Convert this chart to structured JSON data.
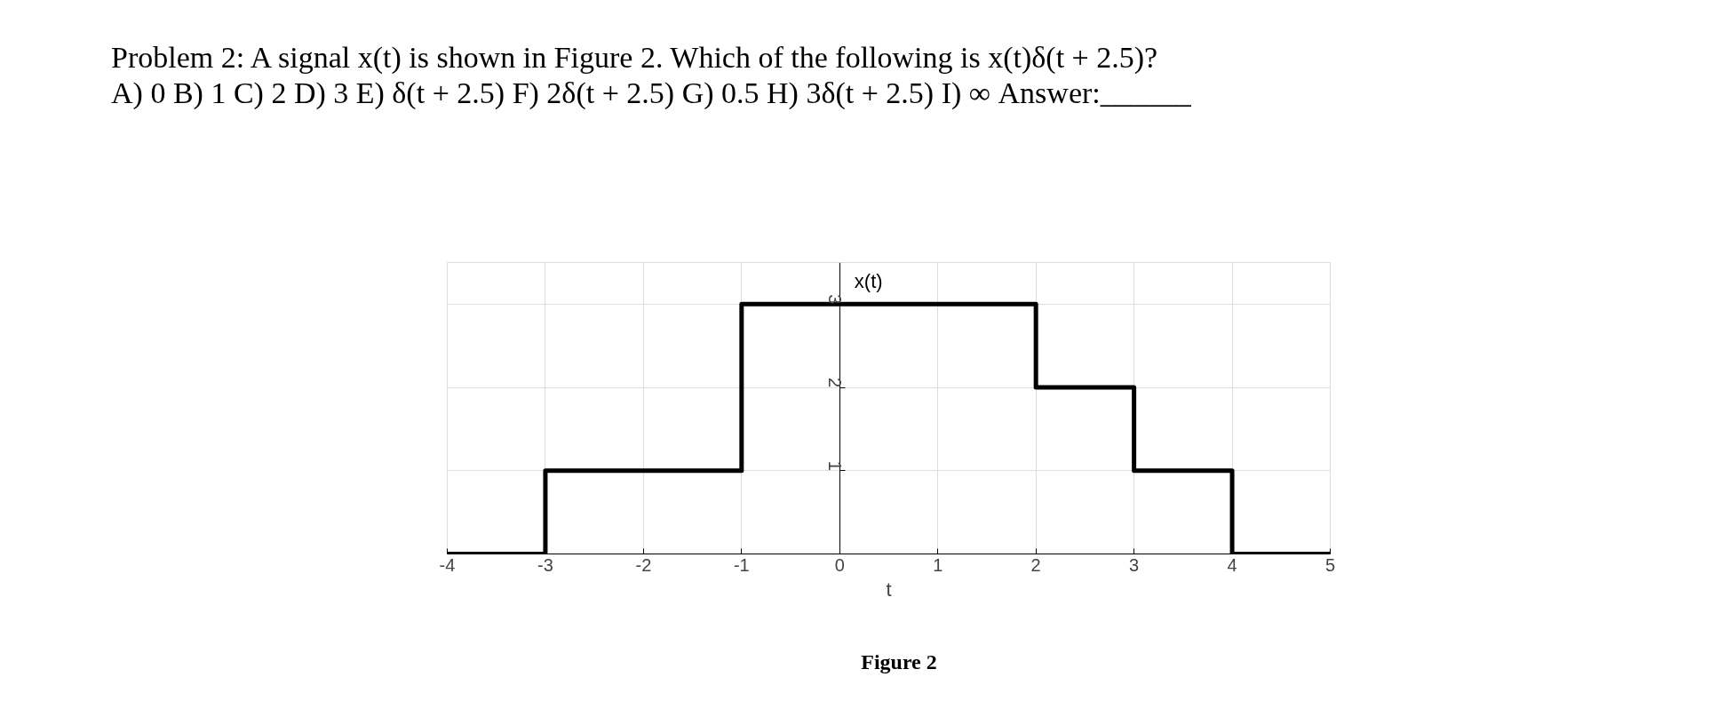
{
  "chart_data": {
    "type": "step",
    "title": "Problem 2: A signal x(t) is shown in Figure 2. Which of the following is x(t)δ(t + 2.5)?",
    "subtitle": "A) 0    B) 1    C) 2    D) 3    E) δ(t + 2.5)    F) 2δ(t + 2.5)    G) 0.5    H) 3δ(t + 2.5)    I) ∞    Answer:______",
    "xlabel": "t",
    "ylabel": "x(t)",
    "annotations": [
      "Figure 2"
    ],
    "x": [
      -4,
      -3,
      -1,
      2,
      3,
      4,
      5
    ],
    "values": [
      0,
      1,
      3,
      2,
      1,
      0,
      0
    ],
    "color": "#000000",
    "xlim": [
      -4,
      5
    ],
    "ylim": [
      0,
      3.5
    ],
    "xticks": [
      -4,
      -3,
      -2,
      -1,
      0,
      1,
      2,
      3,
      4,
      5
    ],
    "yticks": [
      1,
      2,
      3
    ],
    "grid": true
  }
}
